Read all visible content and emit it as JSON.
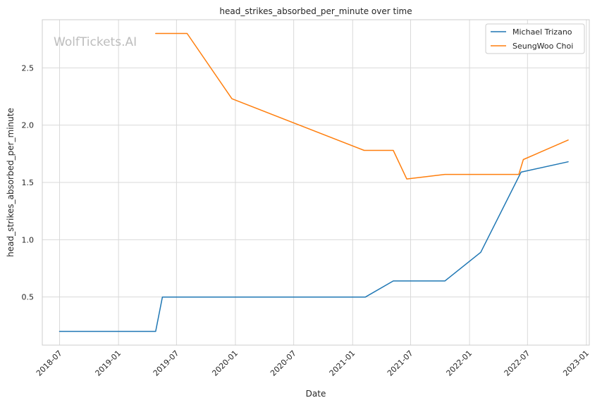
{
  "watermark": "WolfTickets.AI",
  "chart_data": {
    "type": "line",
    "title": "head_strikes_absorbed_per_minute over time",
    "xlabel": "Date",
    "ylabel": "head_strikes_absorbed_per_minute",
    "xlim": [
      "2018-05-08",
      "2023-01-10"
    ],
    "ylim": [
      0.08,
      2.92
    ],
    "x_ticks": [
      "2018-07",
      "2019-01",
      "2019-07",
      "2020-01",
      "2020-07",
      "2021-01",
      "2021-07",
      "2022-01",
      "2022-07",
      "2023-01"
    ],
    "y_ticks": [
      0.5,
      1.0,
      1.5,
      2.0,
      2.5
    ],
    "y_tick_labels": [
      "0.5",
      "1.0",
      "1.5",
      "2.0",
      "2.5"
    ],
    "grid": true,
    "legend_position": "top-right",
    "series": [
      {
        "name": "Michael Trizano",
        "color": "#1f77b4",
        "points": [
          {
            "x": "2018-07-01",
            "y": 0.2
          },
          {
            "x": "2019-04-27",
            "y": 0.2
          },
          {
            "x": "2019-05-18",
            "y": 0.5
          },
          {
            "x": "2021-02-10",
            "y": 0.5
          },
          {
            "x": "2021-05-08",
            "y": 0.64
          },
          {
            "x": "2021-10-16",
            "y": 0.64
          },
          {
            "x": "2022-02-05",
            "y": 0.89
          },
          {
            "x": "2022-06-11",
            "y": 1.59
          },
          {
            "x": "2022-11-05",
            "y": 1.68
          }
        ]
      },
      {
        "name": "SeungWoo Choi",
        "color": "#ff7f0e",
        "points": [
          {
            "x": "2019-04-27",
            "y": 2.8
          },
          {
            "x": "2019-08-03",
            "y": 2.8
          },
          {
            "x": "2019-12-21",
            "y": 2.23
          },
          {
            "x": "2021-02-06",
            "y": 1.78
          },
          {
            "x": "2021-05-08",
            "y": 1.78
          },
          {
            "x": "2021-06-19",
            "y": 1.53
          },
          {
            "x": "2021-10-16",
            "y": 1.57
          },
          {
            "x": "2022-06-04",
            "y": 1.57
          },
          {
            "x": "2022-06-18",
            "y": 1.7
          },
          {
            "x": "2022-11-05",
            "y": 1.87
          }
        ]
      }
    ]
  }
}
